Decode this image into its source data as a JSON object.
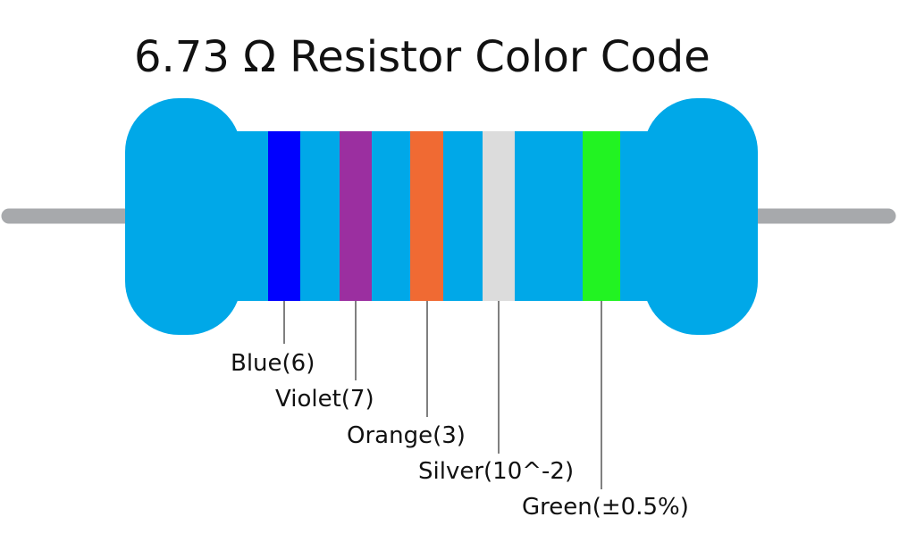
{
  "title": "6.73 Ω Resistor Color Code",
  "bands": [
    {
      "label": "Blue(6)"
    },
    {
      "label": "Violet(7)"
    },
    {
      "label": "Orange(3)"
    },
    {
      "label": "Silver(10^-2)"
    },
    {
      "label": "Green(±0.5%)"
    }
  ]
}
